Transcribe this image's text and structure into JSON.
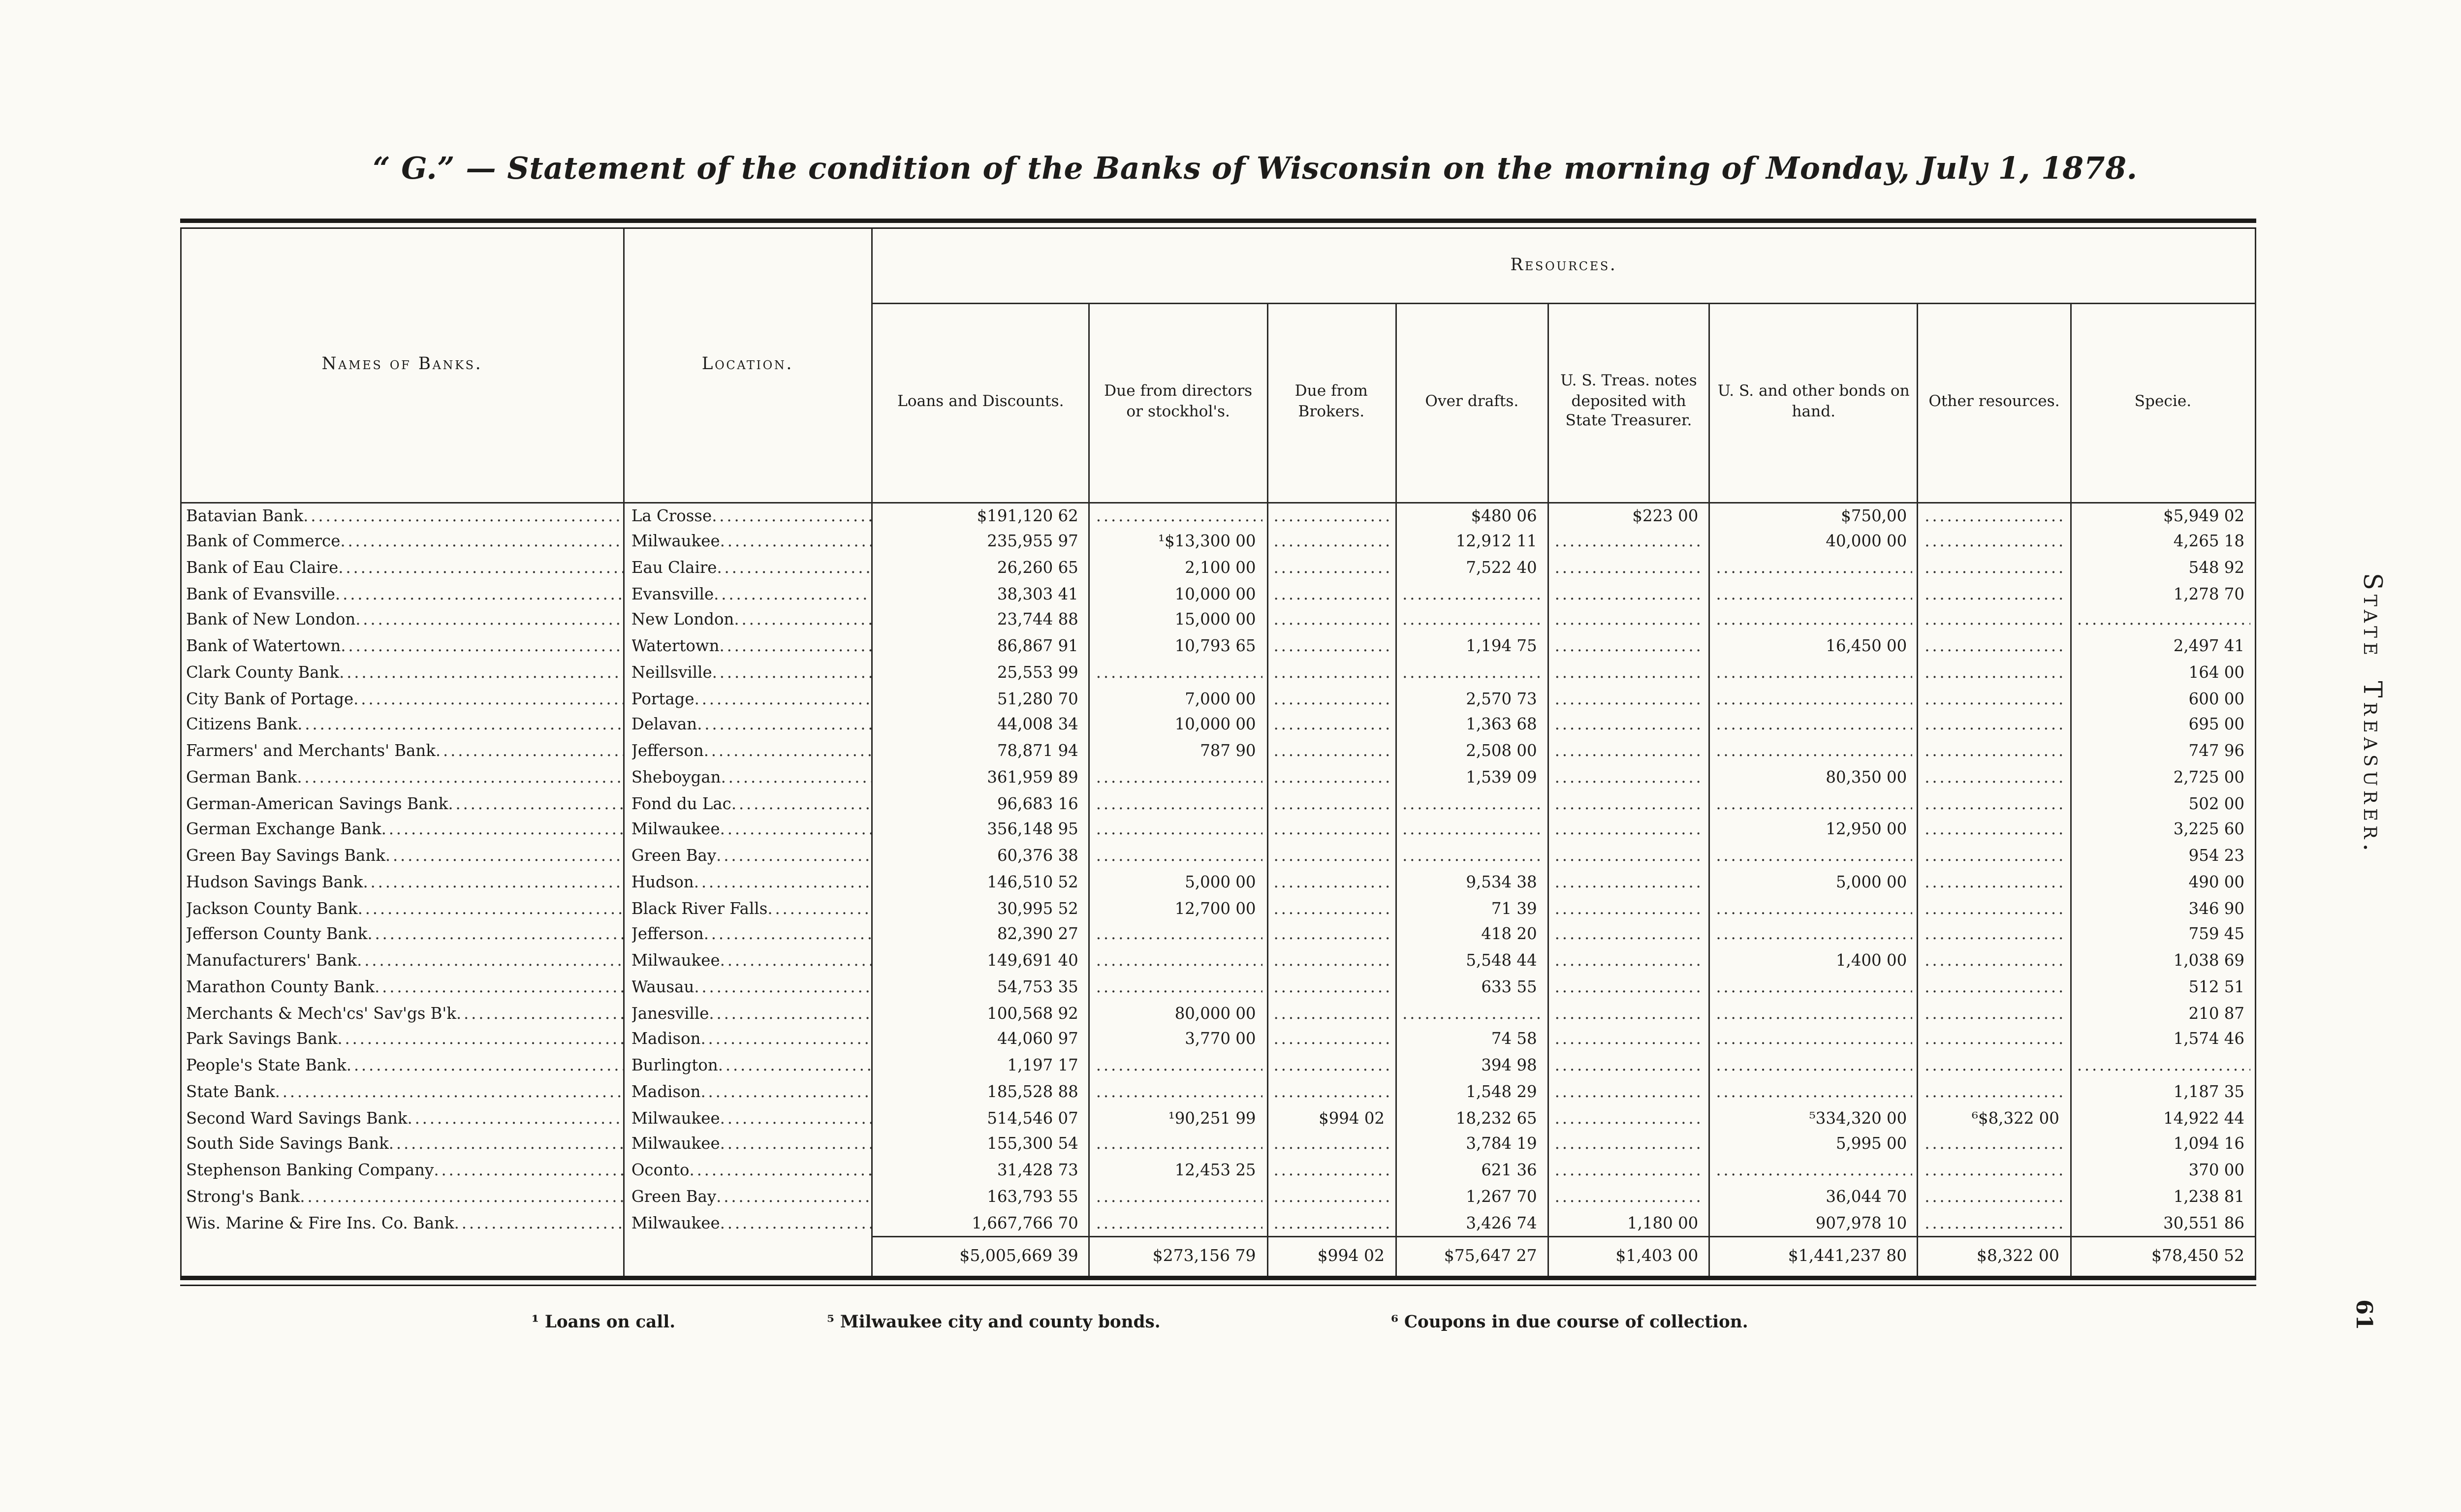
{
  "page": {
    "title": "“ G.” — Statement of the condition of the Banks of Wisconsin on the morning of Monday, July 1, 1878.",
    "margin_text": "State Treasurer.",
    "page_number": "61"
  },
  "table": {
    "headers": {
      "names": "Names of Banks.",
      "location": "Location.",
      "resources_group": "Resources.",
      "resources": [
        "Loans and Discounts.",
        "Due from directors or stockhol's.",
        "Due from Brokers.",
        "Over drafts.",
        "U. S. Treas. notes deposited with State Treasurer.",
        "U. S. and other bonds on hand.",
        "Other resources.",
        "Specie."
      ]
    },
    "rows": [
      {
        "name": "Batavian Bank",
        "location": "La Crosse",
        "values": [
          "$191,120 62",
          "",
          "",
          "$480 06",
          "$223 00",
          "$750,00",
          "",
          "$5,949 02"
        ]
      },
      {
        "name": "Bank of Commerce",
        "location": "Milwaukee",
        "values": [
          "235,955 97",
          "¹$13,300 00",
          "",
          "12,912 11",
          "",
          "40,000 00",
          "",
          "4,265 18"
        ]
      },
      {
        "name": "Bank of Eau Claire",
        "location": "Eau Claire",
        "values": [
          "26,260 65",
          "2,100 00",
          "",
          "7,522 40",
          "",
          "",
          "",
          "548 92"
        ]
      },
      {
        "name": "Bank of Evansville",
        "location": "Evansville",
        "values": [
          "38,303 41",
          "10,000 00",
          "",
          "",
          "",
          "",
          "",
          "1,278 70"
        ]
      },
      {
        "name": "Bank of New London",
        "location": "New London",
        "values": [
          "23,744 88",
          "15,000 00",
          "",
          "",
          "",
          "",
          "",
          ""
        ]
      },
      {
        "name": "Bank of Watertown",
        "location": "Watertown",
        "values": [
          "86,867 91",
          "10,793 65",
          "",
          "1,194 75",
          "",
          "16,450 00",
          "",
          "2,497 41"
        ]
      },
      {
        "name": "Clark County Bank",
        "location": "Neillsville",
        "values": [
          "25,553 99",
          "",
          "",
          "",
          "",
          "",
          "",
          "164 00"
        ]
      },
      {
        "name": "City Bank of Portage",
        "location": "Portage",
        "values": [
          "51,280 70",
          "7,000 00",
          "",
          "2,570 73",
          "",
          "",
          "",
          "600 00"
        ]
      },
      {
        "name": "Citizens Bank",
        "location": "Delavan",
        "values": [
          "44,008 34",
          "10,000 00",
          "",
          "1,363 68",
          "",
          "",
          "",
          "695 00"
        ]
      },
      {
        "name": "Farmers' and Merchants' Bank",
        "location": "Jefferson",
        "values": [
          "78,871 94",
          "787 90",
          "",
          "2,508 00",
          "",
          "",
          "",
          "747 96"
        ]
      },
      {
        "name": "German Bank",
        "location": "Sheboygan",
        "values": [
          "361,959 89",
          "",
          "",
          "1,539 09",
          "",
          "80,350 00",
          "",
          "2,725 00"
        ]
      },
      {
        "name": "German-American Savings Bank",
        "location": "Fond du Lac",
        "values": [
          "96,683 16",
          "",
          "",
          "",
          "",
          "",
          "",
          "502 00"
        ]
      },
      {
        "name": "German Exchange Bank",
        "location": "Milwaukee",
        "values": [
          "356,148 95",
          "",
          "",
          "",
          "",
          "12,950 00",
          "",
          "3,225 60"
        ]
      },
      {
        "name": "Green Bay Savings Bank",
        "location": "Green Bay",
        "values": [
          "60,376 38",
          "",
          "",
          "",
          "",
          "",
          "",
          "954 23"
        ]
      },
      {
        "name": "Hudson Savings Bank",
        "location": "Hudson",
        "values": [
          "146,510 52",
          "5,000 00",
          "",
          "9,534 38",
          "",
          "5,000 00",
          "",
          "490 00"
        ]
      },
      {
        "name": "Jackson County Bank",
        "location": "Black River Falls",
        "values": [
          "30,995 52",
          "12,700 00",
          "",
          "71 39",
          "",
          "",
          "",
          "346 90"
        ]
      },
      {
        "name": "Jefferson County Bank",
        "location": "Jefferson",
        "values": [
          "82,390 27",
          "",
          "",
          "418 20",
          "",
          "",
          "",
          "759 45"
        ]
      },
      {
        "name": "Manufacturers' Bank",
        "location": "Milwaukee",
        "values": [
          "149,691 40",
          "",
          "",
          "5,548 44",
          "",
          "1,400 00",
          "",
          "1,038 69"
        ]
      },
      {
        "name": "Marathon County Bank",
        "location": "Wausau",
        "values": [
          "54,753 35",
          "",
          "",
          "633 55",
          "",
          "",
          "",
          "512 51"
        ]
      },
      {
        "name": "Merchants & Mech'cs' Sav'gs B'k",
        "location": "Janesville",
        "values": [
          "100,568 92",
          "80,000 00",
          "",
          "",
          "",
          "",
          "",
          "210 87"
        ]
      },
      {
        "name": "Park Savings Bank",
        "location": "Madison",
        "values": [
          "44,060 97",
          "3,770 00",
          "",
          "74 58",
          "",
          "",
          "",
          "1,574 46"
        ]
      },
      {
        "name": "People's State Bank",
        "location": "Burlington",
        "values": [
          "1,197 17",
          "",
          "",
          "394 98",
          "",
          "",
          "",
          ""
        ]
      },
      {
        "name": "State Bank",
        "location": "Madison",
        "values": [
          "185,528 88",
          "",
          "",
          "1,548 29",
          "",
          "",
          "",
          "1,187 35"
        ]
      },
      {
        "name": "Second Ward Savings Bank",
        "location": "Milwaukee",
        "values": [
          "514,546 07",
          "¹90,251 99",
          "$994 02",
          "18,232 65",
          "",
          "⁵334,320 00",
          "⁶$8,322 00",
          "14,922 44"
        ]
      },
      {
        "name": "South Side Savings Bank",
        "location": "Milwaukee",
        "values": [
          "155,300 54",
          "",
          "",
          "3,784 19",
          "",
          "5,995 00",
          "",
          "1,094 16"
        ]
      },
      {
        "name": "Stephenson Banking Company",
        "location": "Oconto",
        "values": [
          "31,428 73",
          "12,453 25",
          "",
          "621 36",
          "",
          "",
          "",
          "370 00"
        ]
      },
      {
        "name": "Strong's Bank",
        "location": "Green Bay",
        "values": [
          "163,793 55",
          "",
          "",
          "1,267 70",
          "",
          "36,044 70",
          "",
          "1,238 81"
        ]
      },
      {
        "name": "Wis. Marine & Fire Ins. Co. Bank",
        "location": "Milwaukee",
        "values": [
          "1,667,766 70",
          "",
          "",
          "3,426 74",
          "1,180 00",
          "907,978 10",
          "",
          "30,551 86"
        ]
      }
    ],
    "totals": [
      "$5,005,669 39",
      "$273,156 79",
      "$994 02",
      "$75,647 27",
      "$1,403 00",
      "$1,441,237 80",
      "$8,322 00",
      "$78,450 52"
    ],
    "footnotes": [
      "¹ Loans on call.",
      "⁵ Milwaukee city and county bonds.",
      "⁶ Coupons in due course of collection."
    ]
  }
}
